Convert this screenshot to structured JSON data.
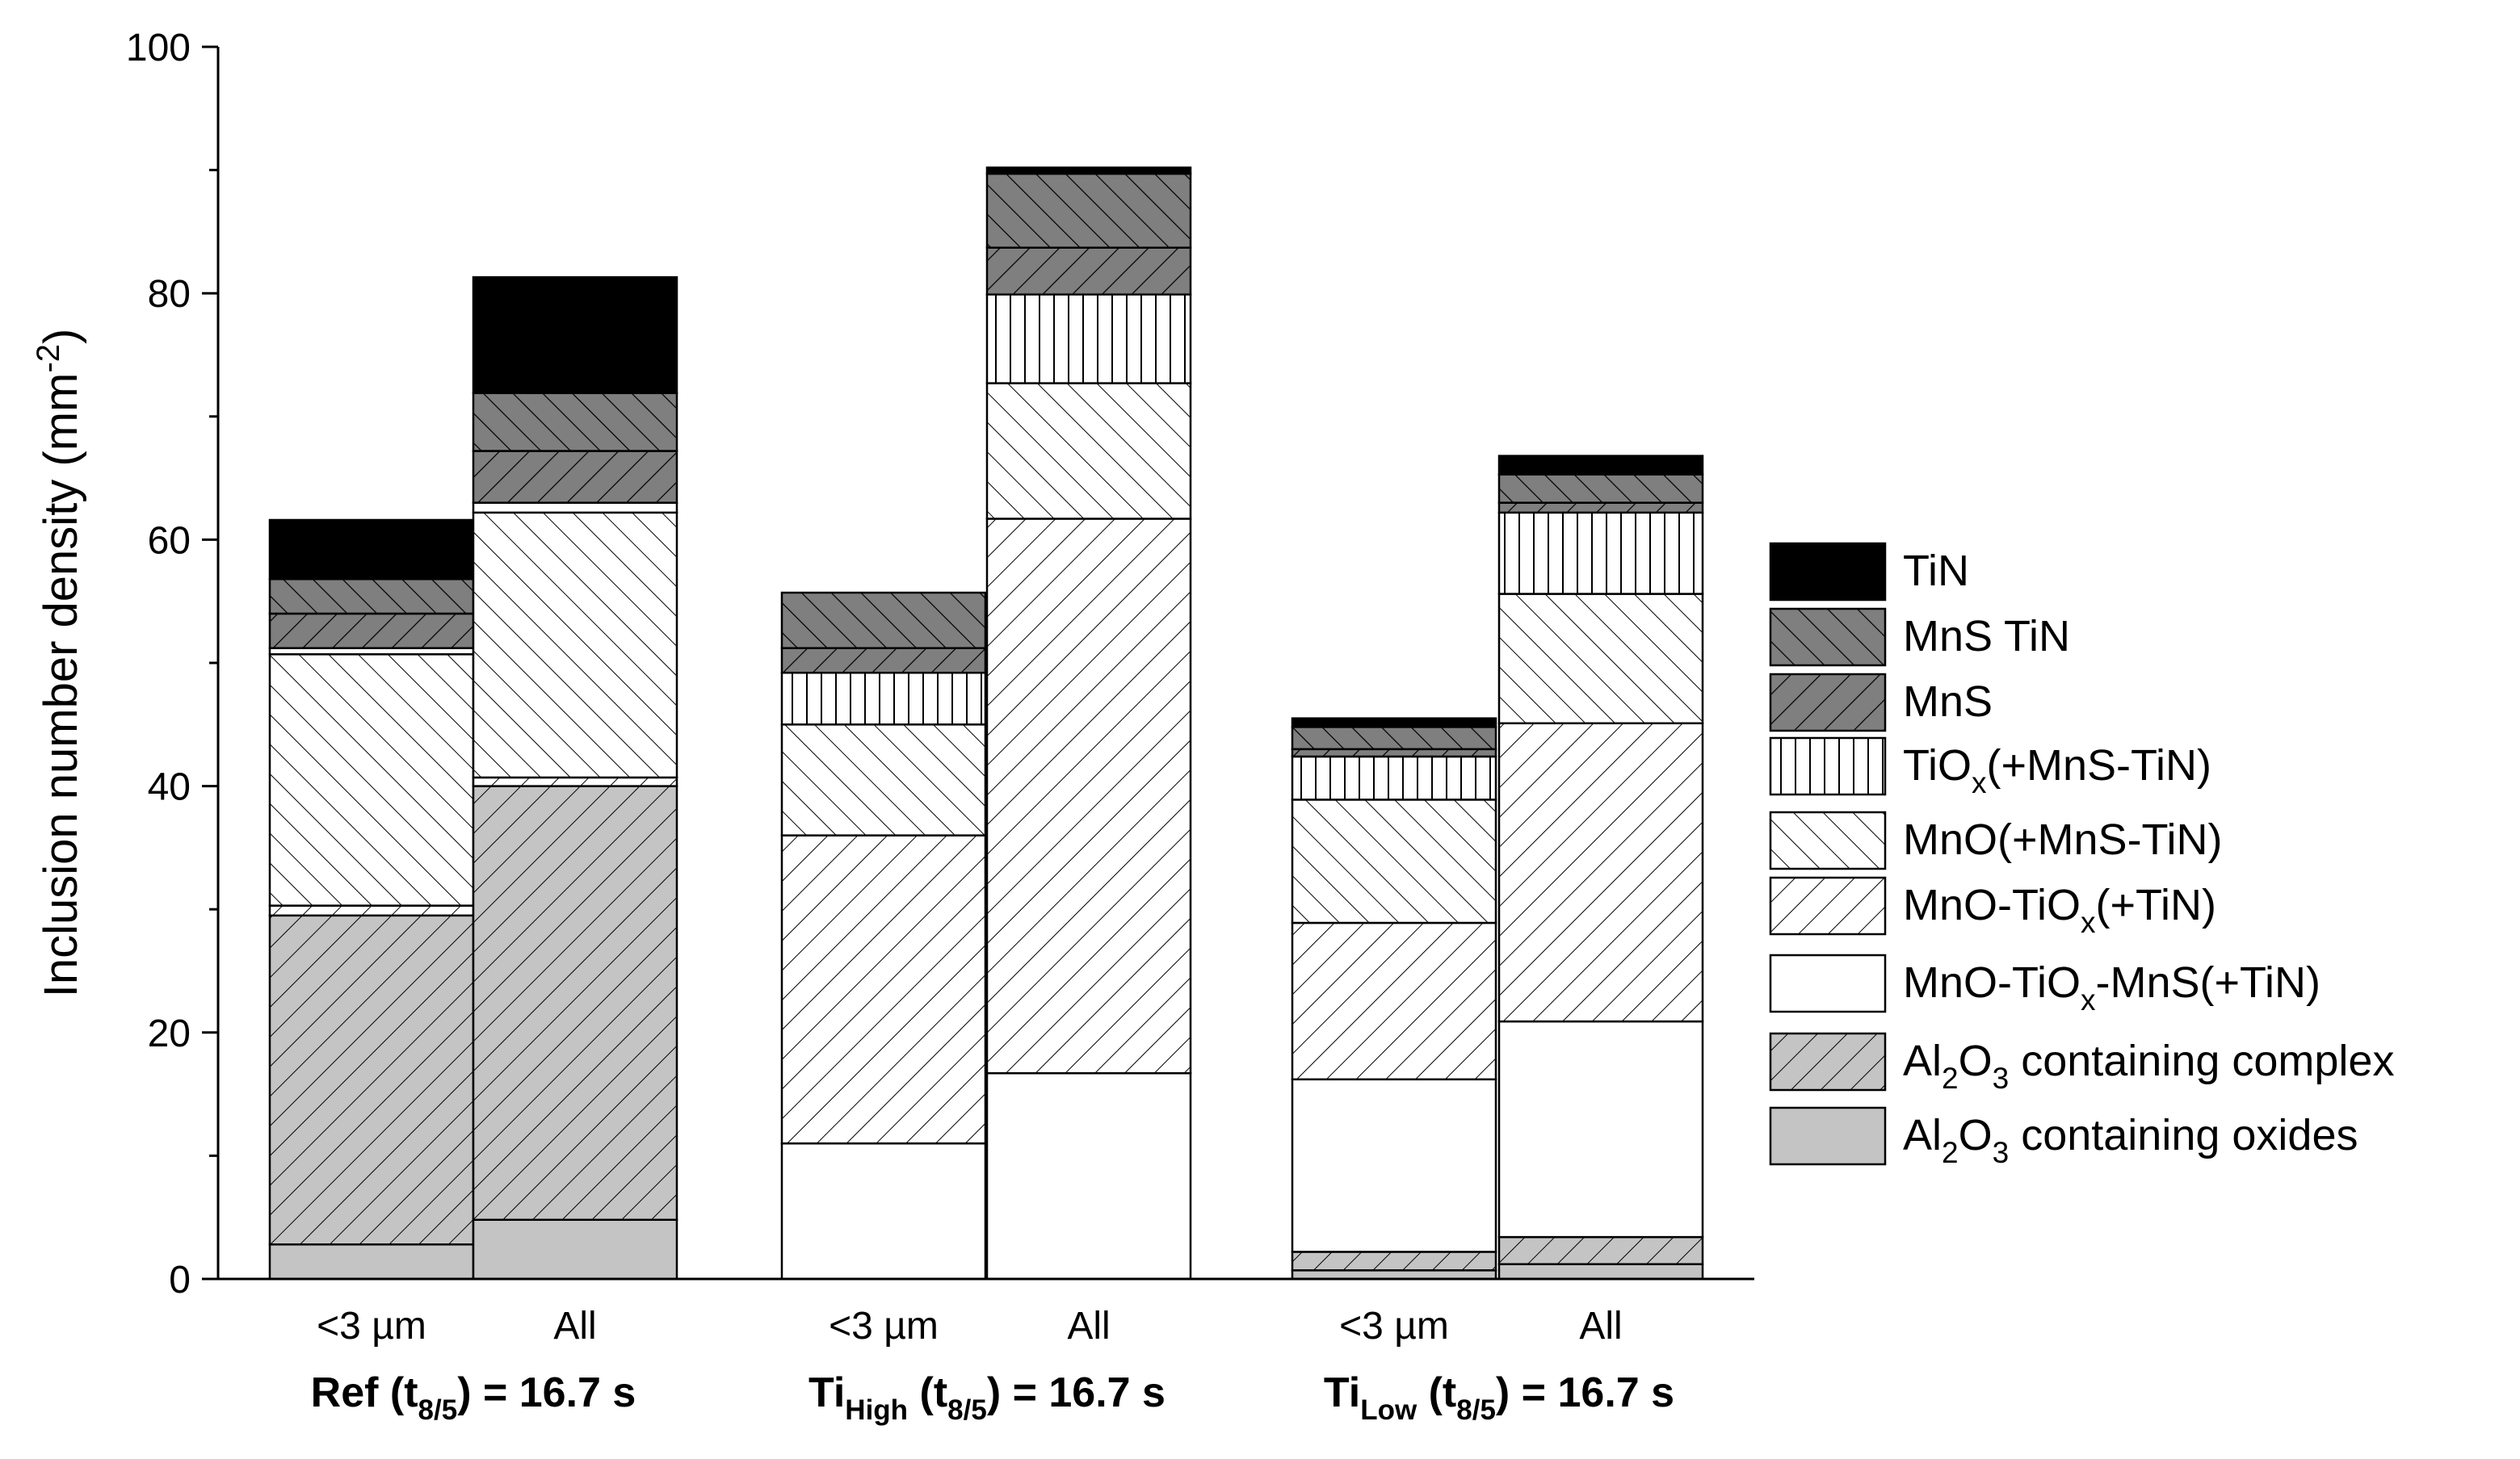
{
  "chart_data": {
    "type": "bar",
    "stacked": true,
    "ylabel": "Inclusion number density (mm",
    "ylabel_sup": "-2",
    "ylabel_end": ")",
    "ylim": [
      0,
      100
    ],
    "yticks": [
      "0",
      "20",
      "40",
      "60",
      "80",
      "100"
    ],
    "groups": [
      {
        "label": [
          {
            "t": "Ref (t",
            "s": ""
          },
          {
            "t": "8/5",
            "s": "sub"
          },
          {
            "t": ") = 16.7 s",
            "s": ""
          }
        ],
        "bars": [
          {
            "label": "<3 µm",
            "values": [
              2.8,
              26.7,
              0,
              0.8,
              20.4,
              0,
              0.5,
              2.8,
              2.8,
              4.8
            ]
          },
          {
            "label": "All",
            "values": [
              4.8,
              35.2,
              0,
              0.7,
              21.5,
              0,
              0.8,
              4.2,
              4.7,
              9.4
            ]
          }
        ]
      },
      {
        "label": [
          {
            "t": "Ti",
            "s": ""
          },
          {
            "t": "High",
            "s": "sub"
          },
          {
            "t": " (t",
            "s": ""
          },
          {
            "t": "8/5",
            "s": "sub"
          },
          {
            "t": ") = 16.7 s",
            "s": ""
          }
        ],
        "bars": [
          {
            "label": "<3 µm",
            "values": [
              0,
              0,
              11.0,
              25.0,
              9.0,
              4.2,
              0,
              2.0,
              4.5,
              0
            ]
          },
          {
            "label": "All",
            "values": [
              0,
              0,
              16.7,
              45.0,
              11.0,
              7.2,
              0,
              3.8,
              6.0,
              0.5
            ]
          }
        ]
      },
      {
        "label": [
          {
            "t": "Ti",
            "s": ""
          },
          {
            "t": "Low",
            "s": "sub"
          },
          {
            "t": " (t",
            "s": ""
          },
          {
            "t": "8/5",
            "s": "sub"
          },
          {
            "t": ") = 16.7 s",
            "s": ""
          }
        ],
        "bars": [
          {
            "label": "<3 µm",
            "values": [
              0.7,
              1.5,
              14.0,
              12.7,
              10.0,
              3.5,
              0,
              0.6,
              1.8,
              0.7
            ]
          },
          {
            "label": "All",
            "values": [
              1.2,
              2.2,
              17.5,
              24.2,
              10.5,
              6.6,
              0,
              0.8,
              2.3,
              1.5
            ]
          }
        ]
      }
    ],
    "stack_order": [
      "al2o3_oxides",
      "al2o3_complex",
      "mno_tiox_mns",
      "mno_tiox",
      "mno",
      "tiox",
      "sep",
      "mns",
      "mns_tin",
      "tin"
    ],
    "series": [
      {
        "id": "tin",
        "name": [
          {
            "t": "TiN",
            "s": ""
          }
        ],
        "pattern": "solid-black"
      },
      {
        "id": "mns_tin",
        "name": [
          {
            "t": "MnS TiN",
            "s": ""
          }
        ],
        "pattern": "dark-gray-backslash"
      },
      {
        "id": "mns",
        "name": [
          {
            "t": "MnS",
            "s": ""
          }
        ],
        "pattern": "dark-gray-slash"
      },
      {
        "id": "tiox",
        "name": [
          {
            "t": "TiO",
            "s": ""
          },
          {
            "t": "x",
            "s": "sub"
          },
          {
            "t": "(+MnS-TiN)",
            "s": ""
          }
        ],
        "pattern": "vertical-lines"
      },
      {
        "id": "mno",
        "name": [
          {
            "t": "MnO(+MnS-TiN)",
            "s": ""
          }
        ],
        "pattern": "backslash"
      },
      {
        "id": "mno_tiox",
        "name": [
          {
            "t": "MnO-TiO",
            "s": ""
          },
          {
            "t": "x",
            "s": "sub"
          },
          {
            "t": "(+TiN)",
            "s": ""
          }
        ],
        "pattern": "slash"
      },
      {
        "id": "mno_tiox_mns",
        "name": [
          {
            "t": "MnO-TiO",
            "s": ""
          },
          {
            "t": "x",
            "s": "sub"
          },
          {
            "t": "-MnS(+TiN)",
            "s": ""
          }
        ],
        "pattern": "white"
      },
      {
        "id": "al2o3_complex",
        "name": [
          {
            "t": "Al",
            "s": ""
          },
          {
            "t": "2",
            "s": "sub"
          },
          {
            "t": "O",
            "s": ""
          },
          {
            "t": "3",
            "s": "sub"
          },
          {
            "t": " containing complex",
            "s": ""
          }
        ],
        "pattern": "gray-slash"
      },
      {
        "id": "al2o3_oxides",
        "name": [
          {
            "t": "Al",
            "s": ""
          },
          {
            "t": "2",
            "s": "sub"
          },
          {
            "t": "O",
            "s": ""
          },
          {
            "t": "3",
            "s": "sub"
          },
          {
            "t": " containing oxides",
            "s": ""
          }
        ],
        "pattern": "light-gray"
      }
    ],
    "legend_position": "right"
  }
}
